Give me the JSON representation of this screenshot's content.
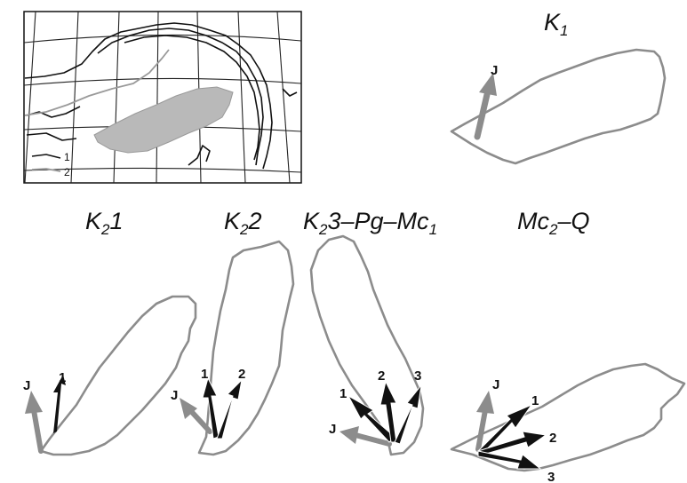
{
  "inset_map": {
    "legend": [
      {
        "key": "1"
      },
      {
        "key": "2"
      }
    ]
  },
  "panels": [
    {
      "title_base": "K",
      "title_sub": "1",
      "title_rest": "",
      "arrows": [
        {
          "label": "J",
          "color": "gray"
        }
      ]
    },
    {
      "title_base": "K",
      "title_sub": "2",
      "title_rest": "1",
      "arrows": [
        {
          "label": "J",
          "color": "gray"
        },
        {
          "label": "1",
          "color": "black"
        }
      ]
    },
    {
      "title_base": "K",
      "title_sub": "2",
      "title_rest": "2",
      "arrows": [
        {
          "label": "J",
          "color": "gray"
        },
        {
          "label": "1",
          "color": "black"
        },
        {
          "label": "2",
          "color": "black"
        }
      ]
    },
    {
      "title_base": "K",
      "title_sub": "2",
      "title_rest": "3–Pg–Mc",
      "title_sub2": "1",
      "arrows": [
        {
          "label": "J",
          "color": "gray"
        },
        {
          "label": "1",
          "color": "black"
        },
        {
          "label": "2",
          "color": "black"
        },
        {
          "label": "3",
          "color": "black"
        }
      ]
    },
    {
      "title_base": "Mc",
      "title_sub": "2",
      "title_rest": "–Q",
      "arrows": [
        {
          "label": "J",
          "color": "gray"
        },
        {
          "label": "1",
          "color": "black"
        },
        {
          "label": "2",
          "color": "black"
        },
        {
          "label": "3",
          "color": "black"
        }
      ]
    }
  ],
  "colors": {
    "outline": "#8c8c8c",
    "gray_arrow": "#8c8c8c",
    "black_arrow": "#111111",
    "inset_fill": "#b9b9b9"
  }
}
